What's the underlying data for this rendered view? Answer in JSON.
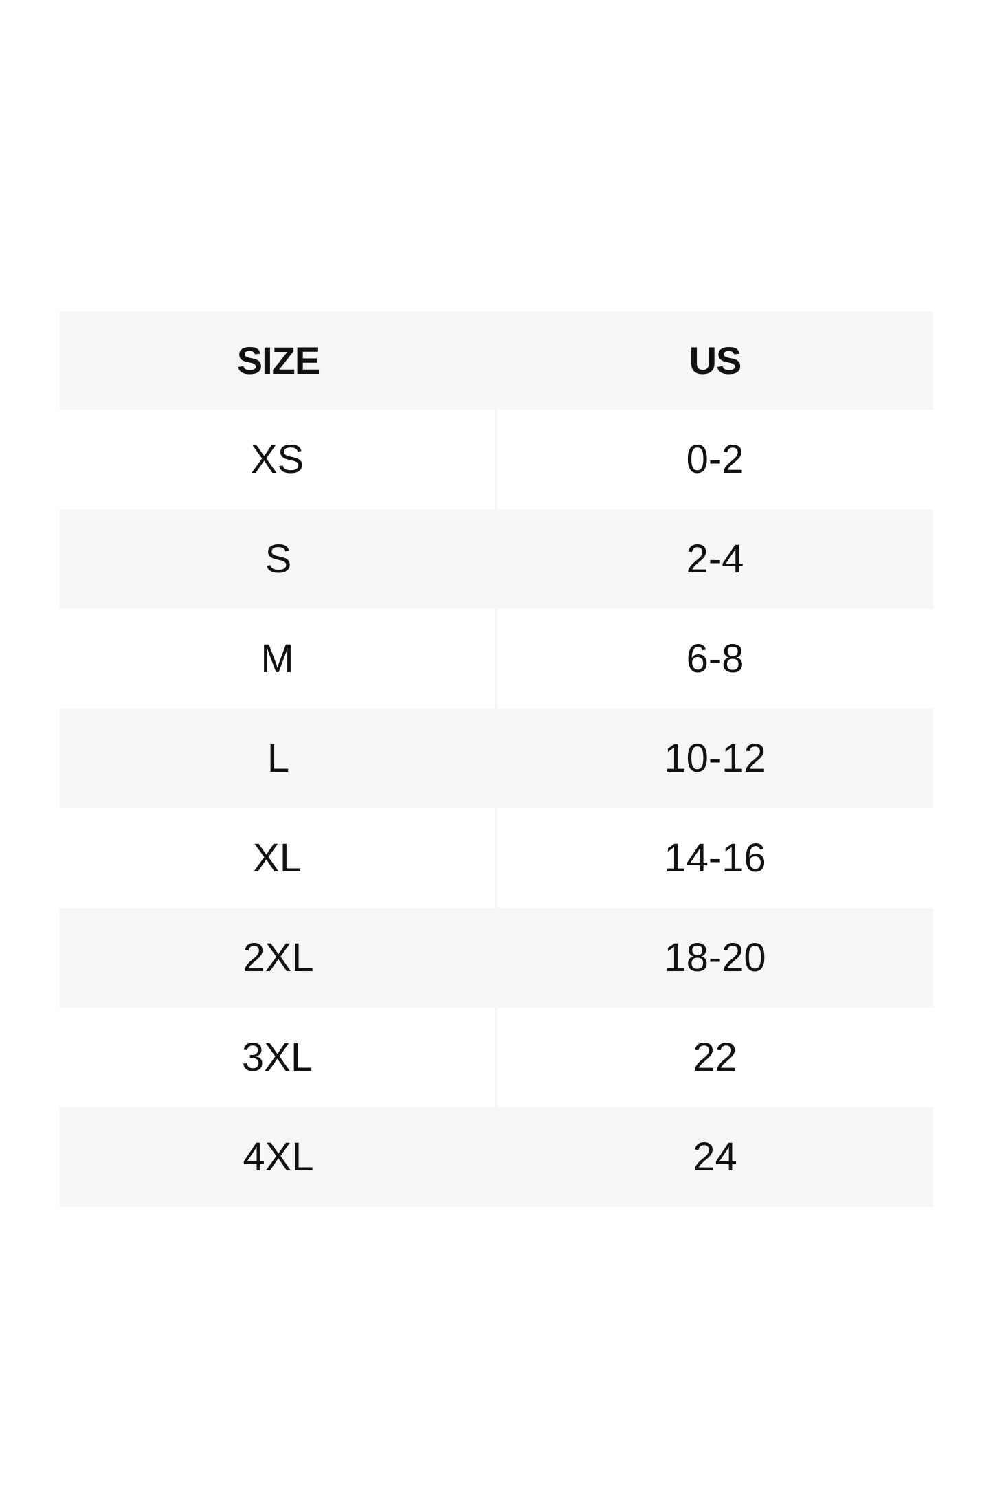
{
  "table": {
    "headers": [
      "SIZE",
      "US"
    ],
    "rows": [
      [
        "XS",
        "0-2"
      ],
      [
        "S",
        "2-4"
      ],
      [
        "M",
        "6-8"
      ],
      [
        "L",
        "10-12"
      ],
      [
        "XL",
        "14-16"
      ],
      [
        "2XL",
        "18-20"
      ],
      [
        "3XL",
        "22"
      ],
      [
        "4XL",
        "24"
      ]
    ]
  },
  "colors": {
    "header_bg": "#f6f6f6",
    "stripe_bg": "#f6f6f6",
    "text": "#111111"
  }
}
